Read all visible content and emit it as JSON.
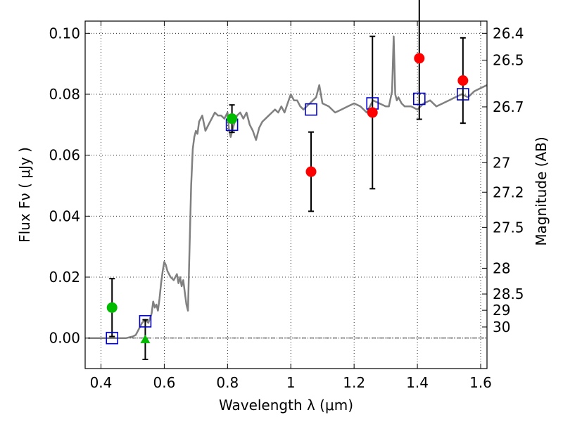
{
  "chart_data": {
    "type": "scatter",
    "xlabel": "Wavelength  λ (μm)",
    "ylabel": "Flux  Fν  ( μJy )",
    "y2label": "Magnitude (AB)",
    "xlim": [
      0.35,
      1.62
    ],
    "ylim": [
      -0.01,
      0.104
    ],
    "grid": true,
    "x_ticks": [
      {
        "value": 0.4,
        "label": "0.4"
      },
      {
        "value": 0.6,
        "label": "0.6"
      },
      {
        "value": 0.8,
        "label": "0.8"
      },
      {
        "value": 1.0,
        "label": "1"
      },
      {
        "value": 1.2,
        "label": "1.2"
      },
      {
        "value": 1.4,
        "label": "1.4"
      },
      {
        "value": 1.6,
        "label": "1.6"
      }
    ],
    "y_ticks": [
      {
        "value": 0.0,
        "label": "0.00"
      },
      {
        "value": 0.02,
        "label": "0.02"
      },
      {
        "value": 0.04,
        "label": "0.04"
      },
      {
        "value": 0.06,
        "label": "0.06"
      },
      {
        "value": 0.08,
        "label": "0.08"
      },
      {
        "value": 0.1,
        "label": "0.10"
      }
    ],
    "mag_ticks": [
      "26.4",
      "26.5",
      "26.7",
      "27",
      "27.2",
      "27.5",
      "28",
      "28.5",
      "29",
      "30"
    ],
    "zero_line": 0.0,
    "colors": {
      "model": "#808080",
      "green": "#00bb00",
      "red": "#ff0000",
      "blue": "#0000cc",
      "errorbar": "#000000"
    },
    "model_spectrum": {
      "x": [
        0.36,
        0.4,
        0.44,
        0.48,
        0.5,
        0.51,
        0.52,
        0.53,
        0.54,
        0.55,
        0.56,
        0.565,
        0.57,
        0.575,
        0.58,
        0.585,
        0.59,
        0.595,
        0.6,
        0.605,
        0.61,
        0.62,
        0.63,
        0.64,
        0.645,
        0.65,
        0.655,
        0.66,
        0.665,
        0.67,
        0.675,
        0.68,
        0.685,
        0.69,
        0.695,
        0.7,
        0.705,
        0.71,
        0.72,
        0.73,
        0.74,
        0.75,
        0.76,
        0.77,
        0.78,
        0.79,
        0.8,
        0.805,
        0.81,
        0.815,
        0.82,
        0.83,
        0.84,
        0.85,
        0.86,
        0.87,
        0.88,
        0.89,
        0.9,
        0.91,
        0.92,
        0.93,
        0.94,
        0.95,
        0.96,
        0.97,
        0.98,
        0.99,
        1.0,
        1.01,
        1.02,
        1.03,
        1.04,
        1.05,
        1.06,
        1.07,
        1.08,
        1.09,
        1.1,
        1.12,
        1.14,
        1.16,
        1.18,
        1.2,
        1.22,
        1.24,
        1.26,
        1.28,
        1.3,
        1.31,
        1.32,
        1.325,
        1.33,
        1.335,
        1.34,
        1.35,
        1.36,
        1.38,
        1.4,
        1.42,
        1.44,
        1.46,
        1.48,
        1.5,
        1.52,
        1.54,
        1.56,
        1.58,
        1.6,
        1.62
      ],
      "y": [
        0.0,
        0.0,
        0.0,
        0.0,
        0.0005,
        0.001,
        0.003,
        0.005,
        0.006,
        0.005,
        0.008,
        0.012,
        0.01,
        0.011,
        0.009,
        0.013,
        0.018,
        0.022,
        0.025,
        0.024,
        0.022,
        0.02,
        0.019,
        0.021,
        0.018,
        0.02,
        0.017,
        0.019,
        0.015,
        0.011,
        0.009,
        0.03,
        0.05,
        0.062,
        0.066,
        0.068,
        0.067,
        0.071,
        0.073,
        0.068,
        0.07,
        0.072,
        0.074,
        0.073,
        0.073,
        0.072,
        0.074,
        0.068,
        0.066,
        0.068,
        0.07,
        0.073,
        0.074,
        0.072,
        0.074,
        0.07,
        0.068,
        0.065,
        0.069,
        0.071,
        0.072,
        0.073,
        0.074,
        0.075,
        0.074,
        0.076,
        0.074,
        0.077,
        0.08,
        0.078,
        0.078,
        0.076,
        0.075,
        0.076,
        0.077,
        0.078,
        0.079,
        0.083,
        0.077,
        0.076,
        0.074,
        0.075,
        0.076,
        0.077,
        0.076,
        0.074,
        0.078,
        0.077,
        0.076,
        0.076,
        0.081,
        0.099,
        0.08,
        0.078,
        0.079,
        0.077,
        0.076,
        0.076,
        0.075,
        0.077,
        0.078,
        0.076,
        0.077,
        0.078,
        0.079,
        0.08,
        0.079,
        0.081,
        0.082,
        0.083
      ]
    },
    "model_bands": [
      {
        "x": 0.435,
        "y": 0.0
      },
      {
        "x": 0.54,
        "y": 0.0055
      },
      {
        "x": 0.814,
        "y": 0.07
      },
      {
        "x": 1.064,
        "y": 0.075
      },
      {
        "x": 1.258,
        "y": 0.077
      },
      {
        "x": 1.406,
        "y": 0.0785
      },
      {
        "x": 1.544,
        "y": 0.08
      }
    ],
    "green_detections": [
      {
        "x": 0.435,
        "y": 0.01,
        "err": 0.0095
      },
      {
        "x": 0.814,
        "y": 0.072,
        "err": 0.0045
      }
    ],
    "green_upper_limit": [
      {
        "x": 0.54,
        "y": -0.0005,
        "err": 0.0065
      }
    ],
    "red_detections": [
      {
        "x": 1.064,
        "y": 0.0546,
        "err": 0.013
      },
      {
        "x": 1.258,
        "y": 0.074,
        "err": 0.025
      },
      {
        "x": 1.406,
        "y": 0.0918,
        "err": 0.02
      },
      {
        "x": 1.544,
        "y": 0.0845,
        "err": 0.014
      }
    ]
  }
}
